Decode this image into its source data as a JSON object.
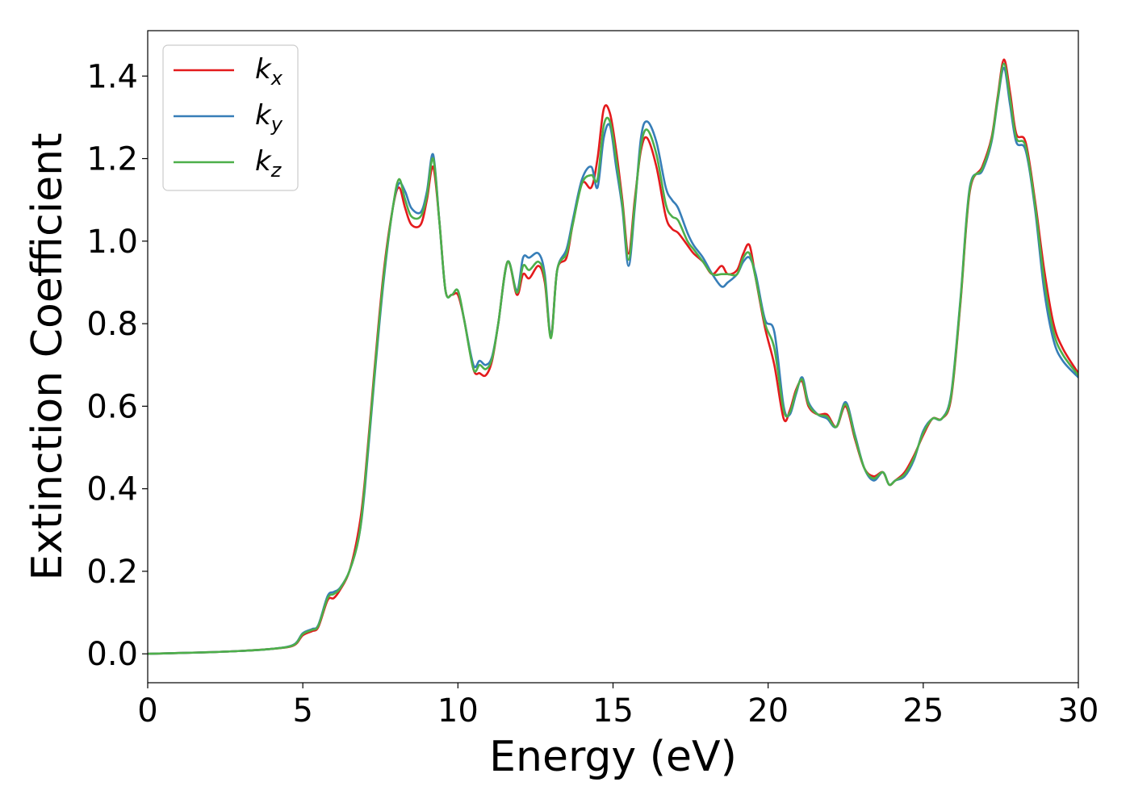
{
  "chart_data": {
    "type": "line",
    "title": "",
    "xlabel": "Energy (eV)",
    "ylabel": "Extinction Coefficient",
    "xlim": [
      0,
      30
    ],
    "ylim": [
      -0.07,
      1.51
    ],
    "xticks": [
      0,
      5,
      10,
      15,
      20,
      25,
      30
    ],
    "xtick_labels": [
      "0",
      "5",
      "10",
      "15",
      "20",
      "25",
      "30"
    ],
    "yticks": [
      0.0,
      0.2,
      0.4,
      0.6,
      0.8,
      1.0,
      1.2,
      1.4
    ],
    "ytick_labels": [
      "0.0",
      "0.2",
      "0.4",
      "0.6",
      "0.8",
      "1.0",
      "1.2",
      "1.4"
    ],
    "grid": false,
    "legend_position": "top-left",
    "series": [
      {
        "name": "kx",
        "legend_main": "k",
        "legend_sub": "x",
        "color": "#e41a1c",
        "x": [
          0,
          1,
          2,
          3,
          4,
          4.7,
          5.0,
          5.3,
          5.5,
          5.8,
          6.0,
          6.2,
          6.5,
          6.8,
          7.0,
          7.3,
          7.6,
          7.9,
          8.1,
          8.3,
          8.5,
          8.8,
          9.0,
          9.2,
          9.4,
          9.6,
          9.8,
          10.0,
          10.2,
          10.5,
          10.7,
          10.9,
          11.1,
          11.3,
          11.6,
          11.9,
          12.1,
          12.3,
          12.6,
          12.8,
          13.0,
          13.2,
          13.5,
          13.7,
          14.0,
          14.3,
          14.5,
          14.7,
          14.9,
          15.1,
          15.3,
          15.5,
          15.7,
          15.9,
          16.1,
          16.4,
          16.7,
          16.9,
          17.1,
          17.4,
          17.6,
          17.9,
          18.2,
          18.5,
          18.7,
          19.0,
          19.2,
          19.4,
          19.6,
          19.9,
          20.2,
          20.5,
          20.7,
          20.9,
          21.1,
          21.3,
          21.6,
          21.9,
          22.2,
          22.5,
          22.8,
          23.1,
          23.4,
          23.7,
          23.9,
          24.1,
          24.4,
          24.7,
          25.0,
          25.3,
          25.6,
          25.9,
          26.2,
          26.5,
          26.9,
          27.2,
          27.4,
          27.6,
          27.8,
          28.0,
          28.3,
          28.6,
          28.9,
          29.2,
          29.5,
          30.0
        ],
        "y": [
          0.0,
          0.002,
          0.004,
          0.007,
          0.012,
          0.02,
          0.045,
          0.055,
          0.065,
          0.13,
          0.135,
          0.155,
          0.2,
          0.3,
          0.42,
          0.68,
          0.92,
          1.08,
          1.13,
          1.08,
          1.04,
          1.04,
          1.1,
          1.18,
          1.05,
          0.88,
          0.87,
          0.87,
          0.81,
          0.69,
          0.68,
          0.675,
          0.71,
          0.8,
          0.95,
          0.87,
          0.92,
          0.91,
          0.94,
          0.9,
          0.77,
          0.93,
          0.96,
          1.04,
          1.14,
          1.13,
          1.2,
          1.32,
          1.31,
          1.22,
          1.1,
          0.97,
          1.1,
          1.22,
          1.25,
          1.18,
          1.06,
          1.03,
          1.02,
          0.99,
          0.97,
          0.95,
          0.92,
          0.94,
          0.92,
          0.93,
          0.97,
          0.99,
          0.91,
          0.79,
          0.7,
          0.57,
          0.59,
          0.64,
          0.66,
          0.6,
          0.58,
          0.58,
          0.55,
          0.6,
          0.52,
          0.45,
          0.43,
          0.44,
          0.41,
          0.42,
          0.44,
          0.48,
          0.53,
          0.57,
          0.57,
          0.62,
          0.85,
          1.12,
          1.18,
          1.25,
          1.35,
          1.44,
          1.36,
          1.26,
          1.24,
          1.1,
          0.93,
          0.8,
          0.74,
          0.68
        ]
      },
      {
        "name": "ky",
        "legend_main": "k",
        "legend_sub": "y",
        "color": "#377eb8",
        "x": [
          0,
          1,
          2,
          3,
          4,
          4.7,
          5.0,
          5.3,
          5.5,
          5.8,
          6.0,
          6.2,
          6.5,
          6.8,
          7.0,
          7.3,
          7.6,
          7.9,
          8.1,
          8.3,
          8.5,
          8.8,
          9.0,
          9.2,
          9.4,
          9.6,
          9.8,
          10.0,
          10.2,
          10.5,
          10.7,
          10.9,
          11.1,
          11.3,
          11.6,
          11.9,
          12.1,
          12.3,
          12.6,
          12.8,
          13.0,
          13.2,
          13.5,
          13.7,
          14.0,
          14.3,
          14.5,
          14.7,
          14.9,
          15.1,
          15.3,
          15.5,
          15.7,
          15.9,
          16.1,
          16.4,
          16.7,
          16.9,
          17.1,
          17.4,
          17.6,
          17.9,
          18.2,
          18.5,
          18.7,
          19.0,
          19.2,
          19.4,
          19.6,
          19.9,
          20.2,
          20.5,
          20.7,
          20.9,
          21.1,
          21.3,
          21.6,
          21.9,
          22.2,
          22.5,
          22.8,
          23.1,
          23.4,
          23.7,
          23.9,
          24.1,
          24.4,
          24.7,
          25.0,
          25.3,
          25.6,
          25.9,
          26.2,
          26.5,
          26.9,
          27.2,
          27.4,
          27.6,
          27.8,
          28.0,
          28.3,
          28.6,
          28.9,
          29.2,
          29.5,
          30.0
        ],
        "y": [
          0.0,
          0.002,
          0.004,
          0.007,
          0.012,
          0.022,
          0.05,
          0.06,
          0.07,
          0.14,
          0.15,
          0.16,
          0.2,
          0.28,
          0.4,
          0.66,
          0.9,
          1.08,
          1.14,
          1.12,
          1.08,
          1.07,
          1.12,
          1.21,
          1.05,
          0.88,
          0.87,
          0.88,
          0.81,
          0.7,
          0.71,
          0.7,
          0.72,
          0.8,
          0.95,
          0.88,
          0.96,
          0.96,
          0.97,
          0.92,
          0.77,
          0.93,
          0.98,
          1.05,
          1.15,
          1.18,
          1.13,
          1.25,
          1.28,
          1.18,
          1.08,
          0.94,
          1.08,
          1.25,
          1.29,
          1.24,
          1.13,
          1.1,
          1.08,
          1.02,
          0.99,
          0.96,
          0.92,
          0.89,
          0.9,
          0.92,
          0.95,
          0.96,
          0.92,
          0.81,
          0.78,
          0.6,
          0.58,
          0.63,
          0.67,
          0.61,
          0.58,
          0.57,
          0.55,
          0.61,
          0.53,
          0.45,
          0.42,
          0.44,
          0.41,
          0.42,
          0.43,
          0.47,
          0.54,
          0.57,
          0.57,
          0.63,
          0.86,
          1.13,
          1.17,
          1.24,
          1.34,
          1.42,
          1.33,
          1.24,
          1.22,
          1.08,
          0.88,
          0.76,
          0.71,
          0.67
        ]
      },
      {
        "name": "kz",
        "legend_main": "k",
        "legend_sub": "z",
        "color": "#4daf4a",
        "x": [
          0,
          1,
          2,
          3,
          4,
          4.7,
          5.0,
          5.3,
          5.5,
          5.8,
          6.0,
          6.2,
          6.5,
          6.8,
          7.0,
          7.3,
          7.6,
          7.9,
          8.1,
          8.3,
          8.5,
          8.8,
          9.0,
          9.2,
          9.4,
          9.6,
          9.8,
          10.0,
          10.2,
          10.5,
          10.7,
          10.9,
          11.1,
          11.3,
          11.6,
          11.9,
          12.1,
          12.3,
          12.6,
          12.8,
          13.0,
          13.2,
          13.5,
          13.7,
          14.0,
          14.3,
          14.5,
          14.7,
          14.9,
          15.1,
          15.3,
          15.5,
          15.7,
          15.9,
          16.1,
          16.4,
          16.7,
          16.9,
          17.1,
          17.4,
          17.6,
          17.9,
          18.2,
          18.5,
          18.7,
          19.0,
          19.2,
          19.4,
          19.6,
          19.9,
          20.2,
          20.5,
          20.7,
          20.9,
          21.1,
          21.3,
          21.6,
          21.9,
          22.2,
          22.5,
          22.8,
          23.1,
          23.4,
          23.7,
          23.9,
          24.1,
          24.4,
          24.7,
          25.0,
          25.3,
          25.6,
          25.9,
          26.2,
          26.5,
          26.9,
          27.2,
          27.4,
          27.6,
          27.8,
          28.0,
          28.3,
          28.6,
          28.9,
          29.2,
          29.5,
          30.0
        ],
        "y": [
          0.0,
          0.002,
          0.004,
          0.007,
          0.012,
          0.021,
          0.048,
          0.058,
          0.068,
          0.135,
          0.145,
          0.158,
          0.2,
          0.28,
          0.41,
          0.67,
          0.91,
          1.08,
          1.15,
          1.1,
          1.06,
          1.06,
          1.11,
          1.2,
          1.05,
          0.88,
          0.87,
          0.88,
          0.81,
          0.69,
          0.7,
          0.69,
          0.715,
          0.8,
          0.95,
          0.875,
          0.94,
          0.93,
          0.95,
          0.91,
          0.765,
          0.93,
          0.97,
          1.04,
          1.14,
          1.16,
          1.15,
          1.28,
          1.29,
          1.2,
          1.09,
          0.955,
          1.09,
          1.23,
          1.27,
          1.21,
          1.09,
          1.06,
          1.05,
          1.0,
          0.98,
          0.95,
          0.92,
          0.92,
          0.92,
          0.92,
          0.96,
          0.97,
          0.91,
          0.8,
          0.74,
          0.59,
          0.585,
          0.635,
          0.665,
          0.605,
          0.58,
          0.575,
          0.55,
          0.605,
          0.525,
          0.45,
          0.425,
          0.44,
          0.41,
          0.42,
          0.435,
          0.475,
          0.535,
          0.57,
          0.57,
          0.625,
          0.855,
          1.125,
          1.175,
          1.245,
          1.345,
          1.43,
          1.345,
          1.25,
          1.23,
          1.09,
          0.905,
          0.78,
          0.725,
          0.675
        ]
      }
    ]
  }
}
